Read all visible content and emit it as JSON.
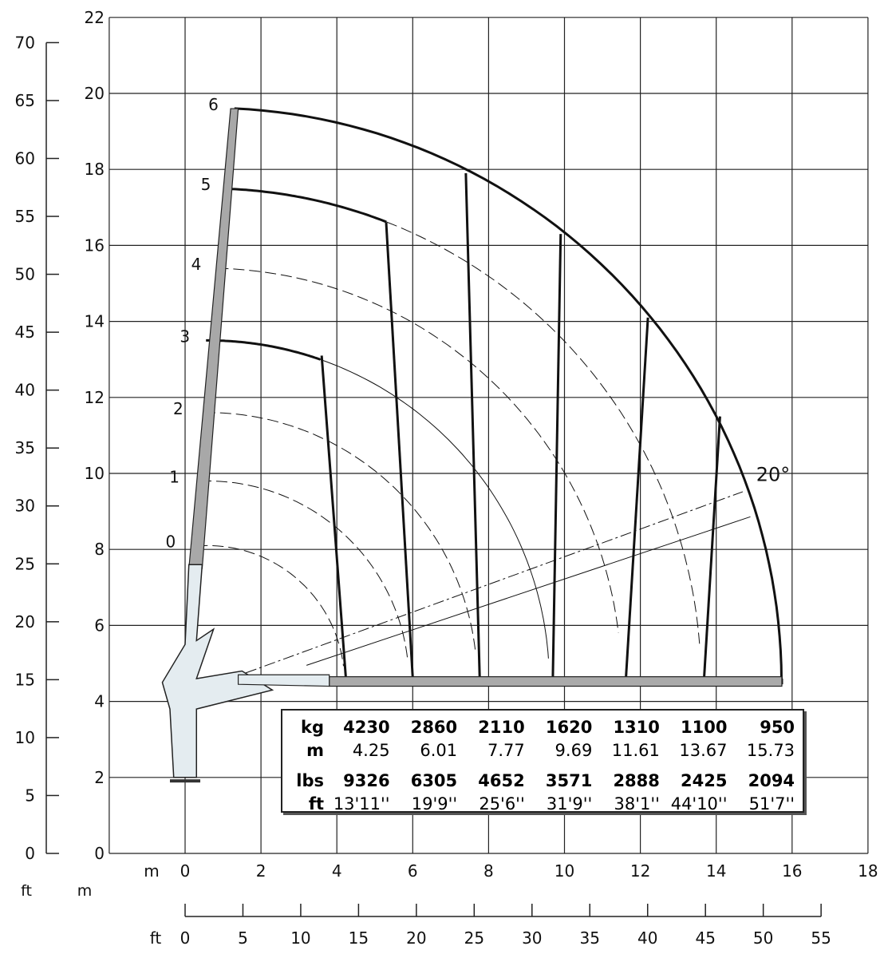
{
  "chart_data": {
    "type": "line",
    "title": "",
    "xlabel": "m",
    "ylabel": "m",
    "x_axis_m": {
      "label": "m",
      "ticks": [
        "0",
        "2",
        "4",
        "6",
        "8",
        "10",
        "12",
        "14",
        "16",
        "18"
      ],
      "range": [
        -2,
        18
      ]
    },
    "x_axis_ft": {
      "label": "ft",
      "ticks": [
        "0",
        "5",
        "10",
        "15",
        "20",
        "25",
        "30",
        "35",
        "40",
        "45",
        "50",
        "55"
      ],
      "range": [
        0,
        55
      ]
    },
    "y_axis_m": {
      "label": "m",
      "ticks": [
        "0",
        "2",
        "4",
        "6",
        "8",
        "10",
        "12",
        "14",
        "16",
        "18",
        "20",
        "22"
      ],
      "range": [
        0,
        22
      ]
    },
    "y_axis_ft": {
      "label": "ft",
      "ticks": [
        "0",
        "5",
        "10",
        "15",
        "20",
        "25",
        "30",
        "35",
        "40",
        "45",
        "50",
        "55",
        "60",
        "65",
        "70"
      ],
      "range": [
        0,
        70
      ]
    },
    "grid": true,
    "boom_sections": [
      "0",
      "1",
      "2",
      "3",
      "4",
      "5",
      "6"
    ],
    "angle_label": "20°",
    "table": {
      "rows": [
        {
          "unit": "kg",
          "values": [
            "4230",
            "2860",
            "2110",
            "1620",
            "1310",
            "1100",
            "950"
          ],
          "bold": true
        },
        {
          "unit": "m",
          "values": [
            "4.25",
            "6.01",
            "7.77",
            "9.69",
            "11.61",
            "13.67",
            "15.73"
          ],
          "bold": false
        },
        {
          "unit": "lbs",
          "values": [
            "9326",
            "6305",
            "4652",
            "3571",
            "2888",
            "2425",
            "2094"
          ],
          "bold": true
        },
        {
          "unit": "ft",
          "values": [
            "13'11''",
            "19'9''",
            "25'6''",
            "31'9''",
            "38'1''",
            "44'10''",
            "51'7''"
          ],
          "bold": false
        }
      ]
    },
    "series": [
      {
        "name": "4230 kg",
        "outreach_m": 4.25
      },
      {
        "name": "2860 kg",
        "outreach_m": 6.01
      },
      {
        "name": "2110 kg",
        "outreach_m": 7.77
      },
      {
        "name": "1620 kg",
        "outreach_m": 9.69
      },
      {
        "name": "1310 kg",
        "outreach_m": 11.61
      },
      {
        "name": "1100 kg",
        "outreach_m": 13.67
      },
      {
        "name": "950 kg",
        "outreach_m": 15.73
      }
    ]
  }
}
